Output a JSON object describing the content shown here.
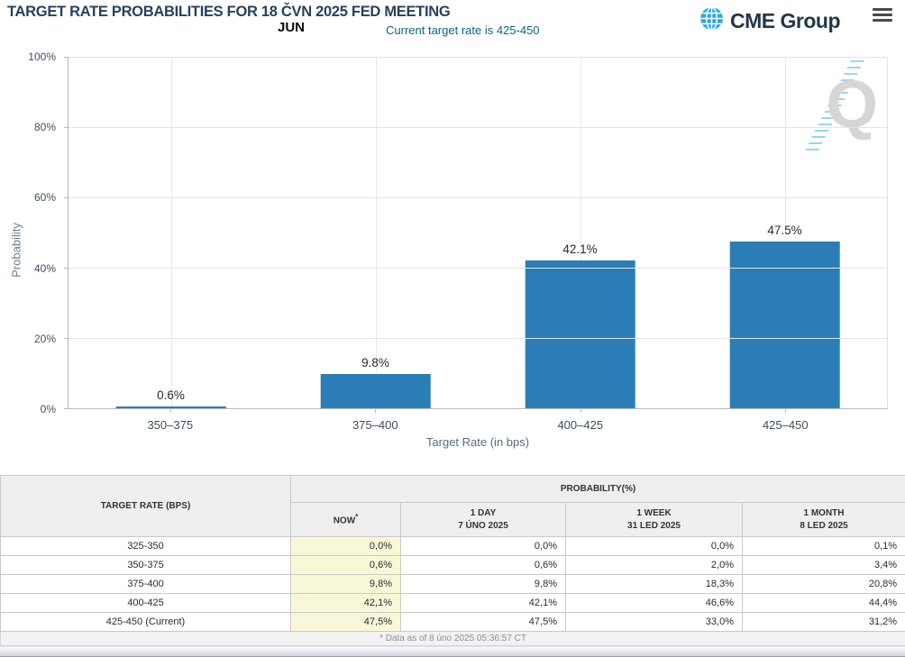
{
  "header": {
    "title": "TARGET RATE PROBABILITIES FOR 18 ČVN 2025 FED MEETING",
    "month_label": "JUN",
    "current_rate_note": "Current target rate is 425-450",
    "brand": "CME Group"
  },
  "chart_data": {
    "type": "bar",
    "categories": [
      "350–375",
      "375–400",
      "400–425",
      "425–450"
    ],
    "values": [
      0.6,
      9.8,
      42.1,
      47.5
    ],
    "bar_labels": [
      "0.6%",
      "9.8%",
      "42.1%",
      "47.5%"
    ],
    "xlabel": "Target Rate (in bps)",
    "ylabel": "Probability",
    "ylim": [
      0,
      100
    ],
    "yticks": [
      "100%",
      "80%",
      "60%",
      "40%",
      "20%",
      "0%"
    ],
    "grid": true,
    "legend": "none",
    "bar_color": "#2b7eb5",
    "watermark": "Q"
  },
  "table": {
    "col1_header": "TARGET RATE (BPS)",
    "group_header": "PROBABILITY(%)",
    "cols": [
      {
        "line1": "NOW",
        "sup": "*",
        "line2": ""
      },
      {
        "line1": "1 DAY",
        "sup": "",
        "line2": "7 ÚNO 2025"
      },
      {
        "line1": "1 WEEK",
        "sup": "",
        "line2": "31 LED 2025"
      },
      {
        "line1": "1 MONTH",
        "sup": "",
        "line2": "8 LED 2025"
      }
    ],
    "rows": [
      {
        "rate": "325-350",
        "now": "0,0%",
        "d1": "0,0%",
        "w1": "0,0%",
        "m1": "0,1%"
      },
      {
        "rate": "350-375",
        "now": "0,6%",
        "d1": "0,6%",
        "w1": "2,0%",
        "m1": "3,4%"
      },
      {
        "rate": "375-400",
        "now": "9,8%",
        "d1": "9,8%",
        "w1": "18,3%",
        "m1": "20,8%"
      },
      {
        "rate": "400-425",
        "now": "42,1%",
        "d1": "42,1%",
        "w1": "46,6%",
        "m1": "44,4%"
      },
      {
        "rate": "425-450 (Current)",
        "now": "47,5%",
        "d1": "47,5%",
        "w1": "33,0%",
        "m1": "31,2%"
      }
    ],
    "footnote": "* Data as of 8 úno 2025 05:36:57 CT"
  }
}
